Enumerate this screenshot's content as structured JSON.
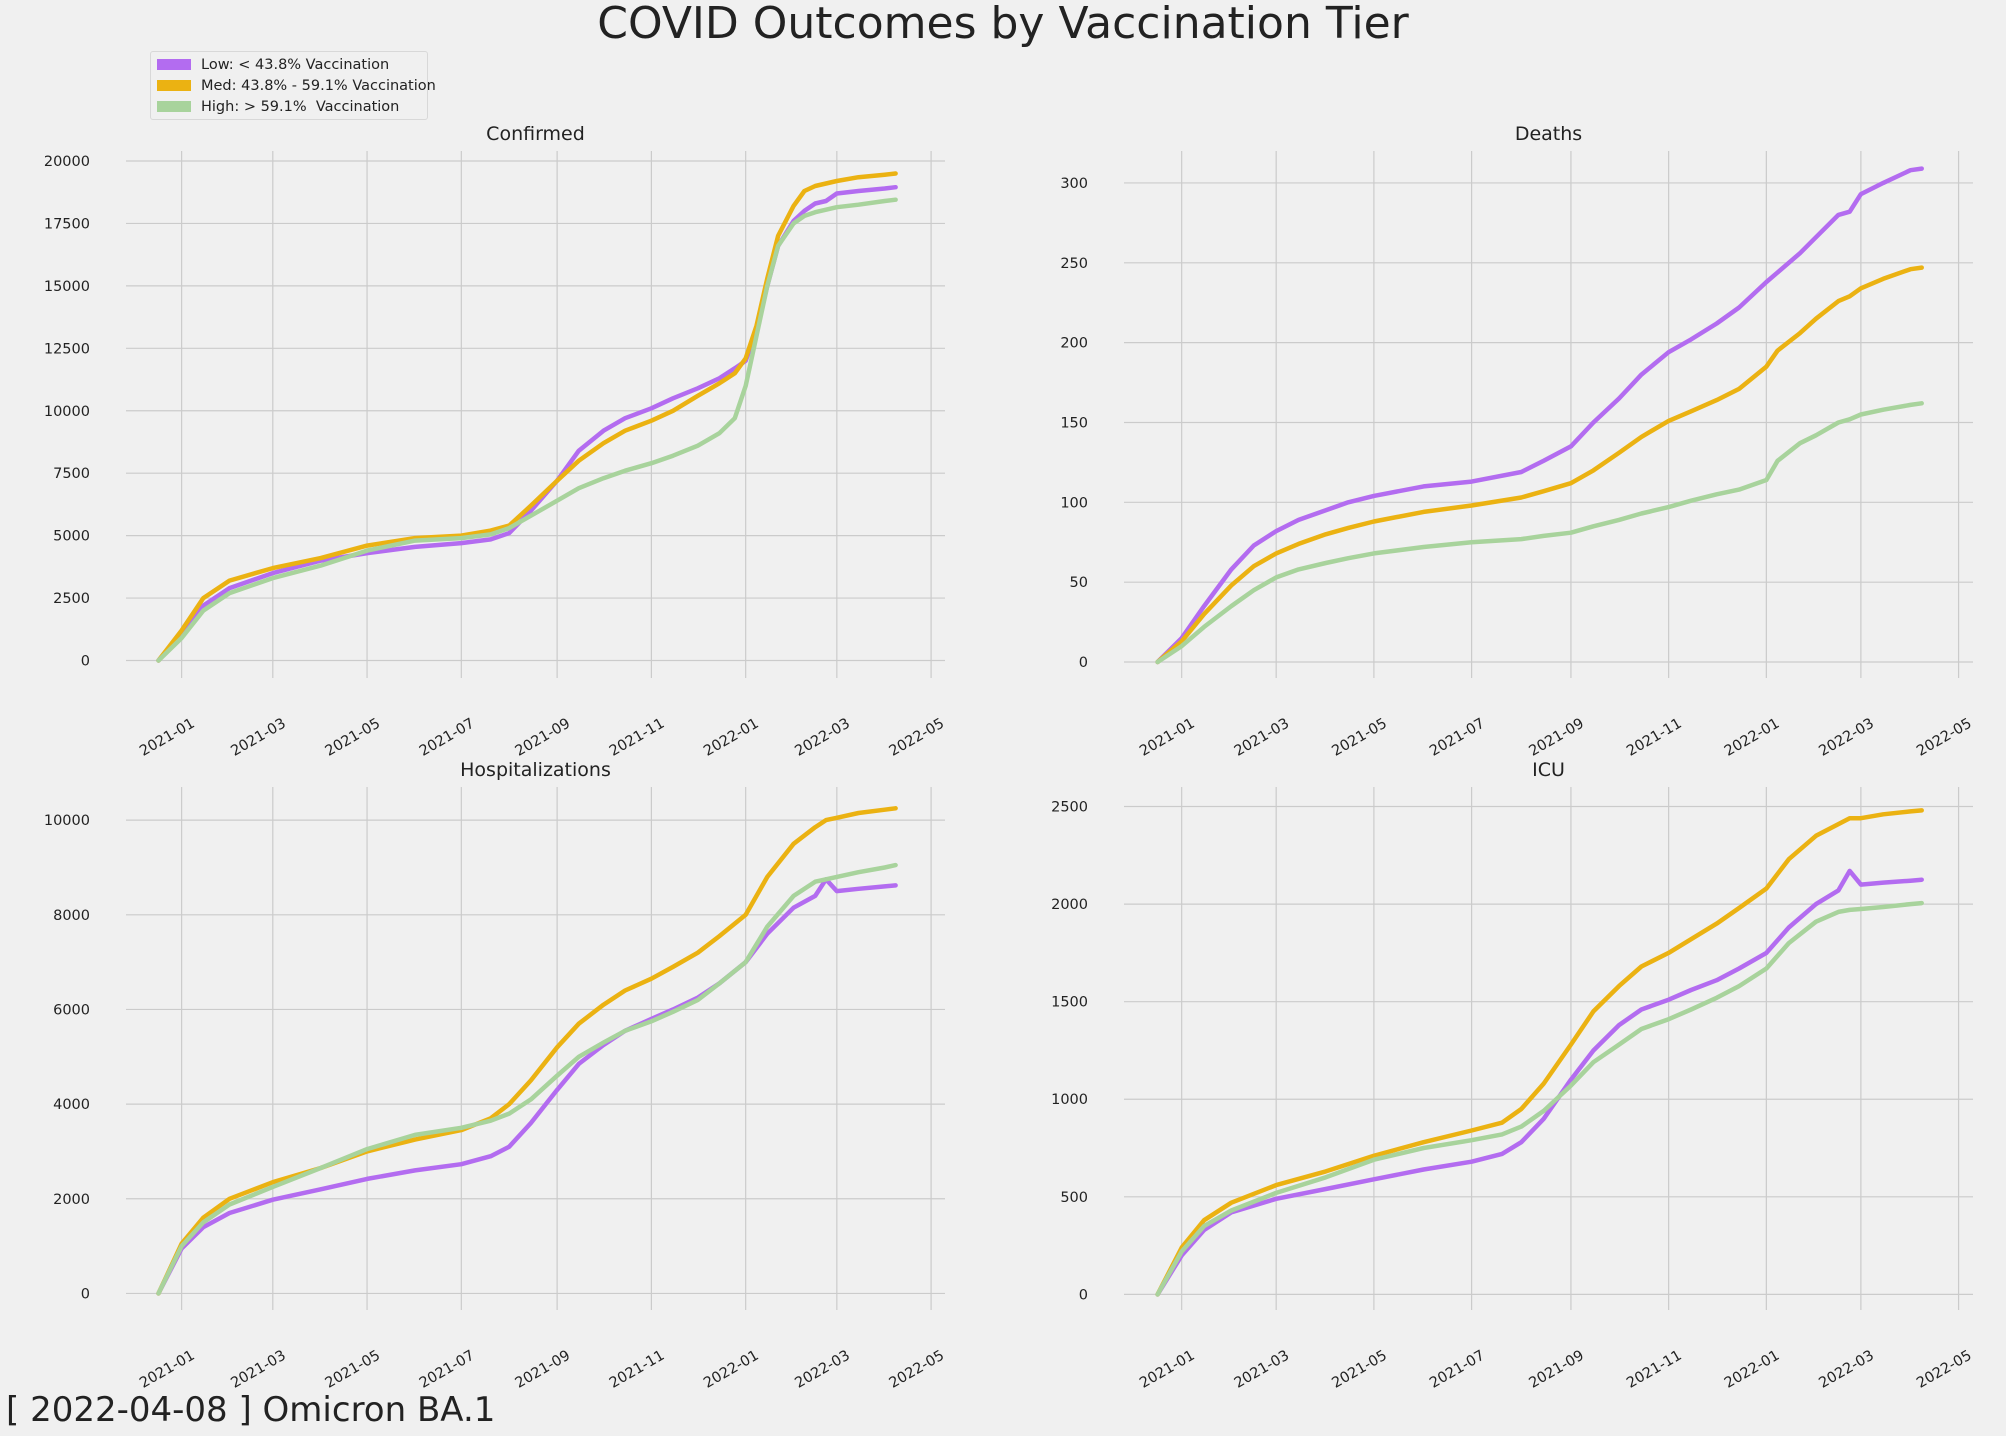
{
  "title": "COVID Outcomes by Vaccination Tier",
  "footer": "[ 2022-04-08 ] Omicron BA.1",
  "legend": [
    {
      "label": "Low: < 43.8% Vaccination",
      "color": "#b36cf0"
    },
    {
      "label": "Med: 43.8% - 59.1% Vaccination",
      "color": "#ebb212"
    },
    {
      "label": "High: > 59.1%  Vaccination",
      "color": "#a8d39c"
    }
  ],
  "x_tick_labels": [
    "2021-01",
    "2021-03",
    "2021-05",
    "2021-07",
    "2021-09",
    "2021-11",
    "2022-01",
    "2022-03",
    "2022-05"
  ],
  "chart_data": [
    {
      "type": "line",
      "title": "Confirmed",
      "x": [
        "2020-12-17",
        "2021-01-01",
        "2021-01-15",
        "2021-02-01",
        "2021-03-01",
        "2021-04-01",
        "2021-05-01",
        "2021-06-01",
        "2021-07-01",
        "2021-07-20",
        "2021-08-01",
        "2021-08-15",
        "2021-09-01",
        "2021-09-15",
        "2021-10-01",
        "2021-10-15",
        "2021-11-01",
        "2021-11-15",
        "2021-12-01",
        "2021-12-15",
        "2021-12-25",
        "2022-01-01",
        "2022-01-08",
        "2022-01-15",
        "2022-01-22",
        "2022-02-01",
        "2022-02-08",
        "2022-02-15",
        "2022-02-22",
        "2022-03-01",
        "2022-03-15",
        "2022-04-01",
        "2022-04-08"
      ],
      "yticks": [
        0,
        2500,
        5000,
        7500,
        10000,
        12500,
        15000,
        17500,
        20000
      ],
      "ylim": [
        -700,
        20400
      ],
      "xlim": [
        "2020-11-26",
        "2022-05-10"
      ],
      "series": [
        {
          "name": "Low: < 43.8% Vaccination",
          "color": "#b36cf0",
          "values": [
            0,
            1100,
            2200,
            2900,
            3500,
            4000,
            4300,
            4550,
            4700,
            4850,
            5100,
            6000,
            7200,
            8400,
            9200,
            9700,
            10100,
            10500,
            10900,
            11300,
            11700,
            12000,
            13200,
            15000,
            16600,
            17600,
            18000,
            18300,
            18400,
            18700,
            18800,
            18900,
            18950
          ]
        },
        {
          "name": "Med: 43.8% - 59.1% Vaccination",
          "color": "#ebb212",
          "values": [
            0,
            1200,
            2500,
            3200,
            3700,
            4100,
            4600,
            4900,
            5000,
            5200,
            5400,
            6200,
            7200,
            8000,
            8700,
            9200,
            9600,
            10000,
            10600,
            11100,
            11500,
            12100,
            13400,
            15300,
            17000,
            18200,
            18800,
            19000,
            19100,
            19200,
            19350,
            19450,
            19500
          ]
        },
        {
          "name": "High: > 59.1%  Vaccination",
          "color": "#a8d39c",
          "values": [
            0,
            900,
            2000,
            2700,
            3300,
            3800,
            4400,
            4800,
            4900,
            5050,
            5300,
            5800,
            6400,
            6900,
            7300,
            7600,
            7900,
            8200,
            8600,
            9100,
            9700,
            11000,
            13000,
            15000,
            16600,
            17500,
            17800,
            17950,
            18050,
            18150,
            18250,
            18400,
            18450
          ]
        }
      ]
    },
    {
      "type": "line",
      "title": "Deaths",
      "x": [
        "2020-12-17",
        "2021-01-01",
        "2021-01-15",
        "2021-02-01",
        "2021-02-15",
        "2021-03-01",
        "2021-03-15",
        "2021-04-01",
        "2021-04-15",
        "2021-05-01",
        "2021-06-01",
        "2021-07-01",
        "2021-08-01",
        "2021-08-15",
        "2021-09-01",
        "2021-09-15",
        "2021-10-01",
        "2021-10-15",
        "2021-11-01",
        "2021-11-15",
        "2021-12-01",
        "2021-12-15",
        "2022-01-01",
        "2022-01-08",
        "2022-01-22",
        "2022-02-01",
        "2022-02-15",
        "2022-02-22",
        "2022-03-01",
        "2022-03-15",
        "2022-04-01",
        "2022-04-08"
      ],
      "yticks": [
        0,
        50,
        100,
        150,
        200,
        250,
        300
      ],
      "ylim": [
        -10,
        320
      ],
      "xlim": [
        "2020-11-26",
        "2022-05-10"
      ],
      "series": [
        {
          "name": "Low: < 43.8% Vaccination",
          "color": "#b36cf0",
          "values": [
            0,
            15,
            35,
            58,
            73,
            82,
            89,
            95,
            100,
            104,
            110,
            113,
            119,
            126,
            135,
            150,
            165,
            180,
            194,
            202,
            212,
            222,
            238,
            244,
            256,
            266,
            280,
            282,
            293,
            300,
            308,
            309
          ]
        },
        {
          "name": "Med: 43.8% - 59.1% Vaccination",
          "color": "#ebb212",
          "values": [
            0,
            13,
            30,
            48,
            60,
            68,
            74,
            80,
            84,
            88,
            94,
            98,
            103,
            107,
            112,
            120,
            131,
            141,
            151,
            157,
            164,
            171,
            185,
            195,
            206,
            215,
            226,
            229,
            234,
            240,
            246,
            247
          ]
        },
        {
          "name": "High: > 59.1%  Vaccination",
          "color": "#a8d39c",
          "values": [
            0,
            10,
            22,
            35,
            45,
            53,
            58,
            62,
            65,
            68,
            72,
            75,
            77,
            79,
            81,
            85,
            89,
            93,
            97,
            101,
            105,
            108,
            114,
            126,
            137,
            142,
            150,
            152,
            155,
            158,
            161,
            162
          ]
        }
      ]
    },
    {
      "type": "line",
      "title": "Hospitalizations",
      "x": [
        "2020-12-17",
        "2021-01-01",
        "2021-01-15",
        "2021-02-01",
        "2021-03-01",
        "2021-04-01",
        "2021-05-01",
        "2021-06-01",
        "2021-07-01",
        "2021-07-20",
        "2021-08-01",
        "2021-08-15",
        "2021-09-01",
        "2021-09-15",
        "2021-10-01",
        "2021-10-15",
        "2021-11-01",
        "2021-11-15",
        "2021-12-01",
        "2021-12-15",
        "2022-01-01",
        "2022-01-15",
        "2022-02-01",
        "2022-02-15",
        "2022-02-22",
        "2022-03-01",
        "2022-03-15",
        "2022-04-01",
        "2022-04-08"
      ],
      "yticks": [
        0,
        2000,
        4000,
        6000,
        8000,
        10000
      ],
      "ylim": [
        -350,
        10700
      ],
      "xlim": [
        "2020-11-26",
        "2022-05-10"
      ],
      "series": [
        {
          "name": "Low: < 43.8% Vaccination",
          "color": "#b36cf0",
          "values": [
            0,
            950,
            1400,
            1700,
            1980,
            2200,
            2420,
            2600,
            2730,
            2900,
            3100,
            3600,
            4300,
            4850,
            5250,
            5550,
            5800,
            6000,
            6250,
            6550,
            7000,
            7600,
            8150,
            8400,
            8750,
            8500,
            8550,
            8600,
            8620
          ]
        },
        {
          "name": "Med: 43.8% - 59.1% Vaccination",
          "color": "#ebb212",
          "values": [
            0,
            1050,
            1600,
            2000,
            2350,
            2650,
            3000,
            3250,
            3450,
            3700,
            4000,
            4500,
            5200,
            5700,
            6100,
            6400,
            6650,
            6900,
            7200,
            7550,
            8000,
            8800,
            9500,
            9850,
            10000,
            10050,
            10150,
            10220,
            10250
          ]
        },
        {
          "name": "High: > 59.1%  Vaccination",
          "color": "#a8d39c",
          "values": [
            0,
            1000,
            1500,
            1880,
            2250,
            2650,
            3050,
            3350,
            3500,
            3650,
            3800,
            4100,
            4600,
            5000,
            5300,
            5550,
            5750,
            5950,
            6200,
            6550,
            7000,
            7750,
            8400,
            8700,
            8750,
            8800,
            8900,
            9000,
            9050
          ]
        }
      ]
    },
    {
      "type": "line",
      "title": "ICU",
      "x": [
        "2020-12-17",
        "2021-01-01",
        "2021-01-15",
        "2021-02-01",
        "2021-03-01",
        "2021-04-01",
        "2021-05-01",
        "2021-06-01",
        "2021-07-01",
        "2021-07-20",
        "2021-08-01",
        "2021-08-15",
        "2021-09-01",
        "2021-09-15",
        "2021-10-01",
        "2021-10-15",
        "2021-11-01",
        "2021-11-15",
        "2021-12-01",
        "2021-12-15",
        "2022-01-01",
        "2022-01-15",
        "2022-02-01",
        "2022-02-15",
        "2022-02-22",
        "2022-03-01",
        "2022-03-15",
        "2022-04-01",
        "2022-04-08"
      ],
      "yticks": [
        0,
        500,
        1000,
        1500,
        2000,
        2500
      ],
      "ylim": [
        -80,
        2600
      ],
      "xlim": [
        "2020-11-26",
        "2022-05-10"
      ],
      "series": [
        {
          "name": "Low: < 43.8% Vaccination",
          "color": "#b36cf0",
          "values": [
            0,
            200,
            330,
            420,
            490,
            540,
            590,
            640,
            680,
            720,
            780,
            900,
            1100,
            1250,
            1380,
            1460,
            1510,
            1560,
            1610,
            1670,
            1750,
            1880,
            2000,
            2070,
            2170,
            2100,
            2110,
            2120,
            2125
          ]
        },
        {
          "name": "Med: 43.8% - 59.1% Vaccination",
          "color": "#ebb212",
          "values": [
            0,
            240,
            380,
            470,
            560,
            630,
            710,
            780,
            840,
            880,
            950,
            1080,
            1280,
            1450,
            1580,
            1680,
            1750,
            1820,
            1900,
            1980,
            2080,
            2230,
            2350,
            2410,
            2440,
            2440,
            2460,
            2475,
            2480
          ]
        },
        {
          "name": "High: > 59.1%  Vaccination",
          "color": "#a8d39c",
          "values": [
            0,
            220,
            350,
            430,
            520,
            600,
            690,
            750,
            790,
            820,
            860,
            940,
            1070,
            1190,
            1280,
            1360,
            1410,
            1460,
            1520,
            1580,
            1670,
            1800,
            1910,
            1960,
            1970,
            1975,
            1985,
            2000,
            2005
          ]
        }
      ]
    }
  ]
}
